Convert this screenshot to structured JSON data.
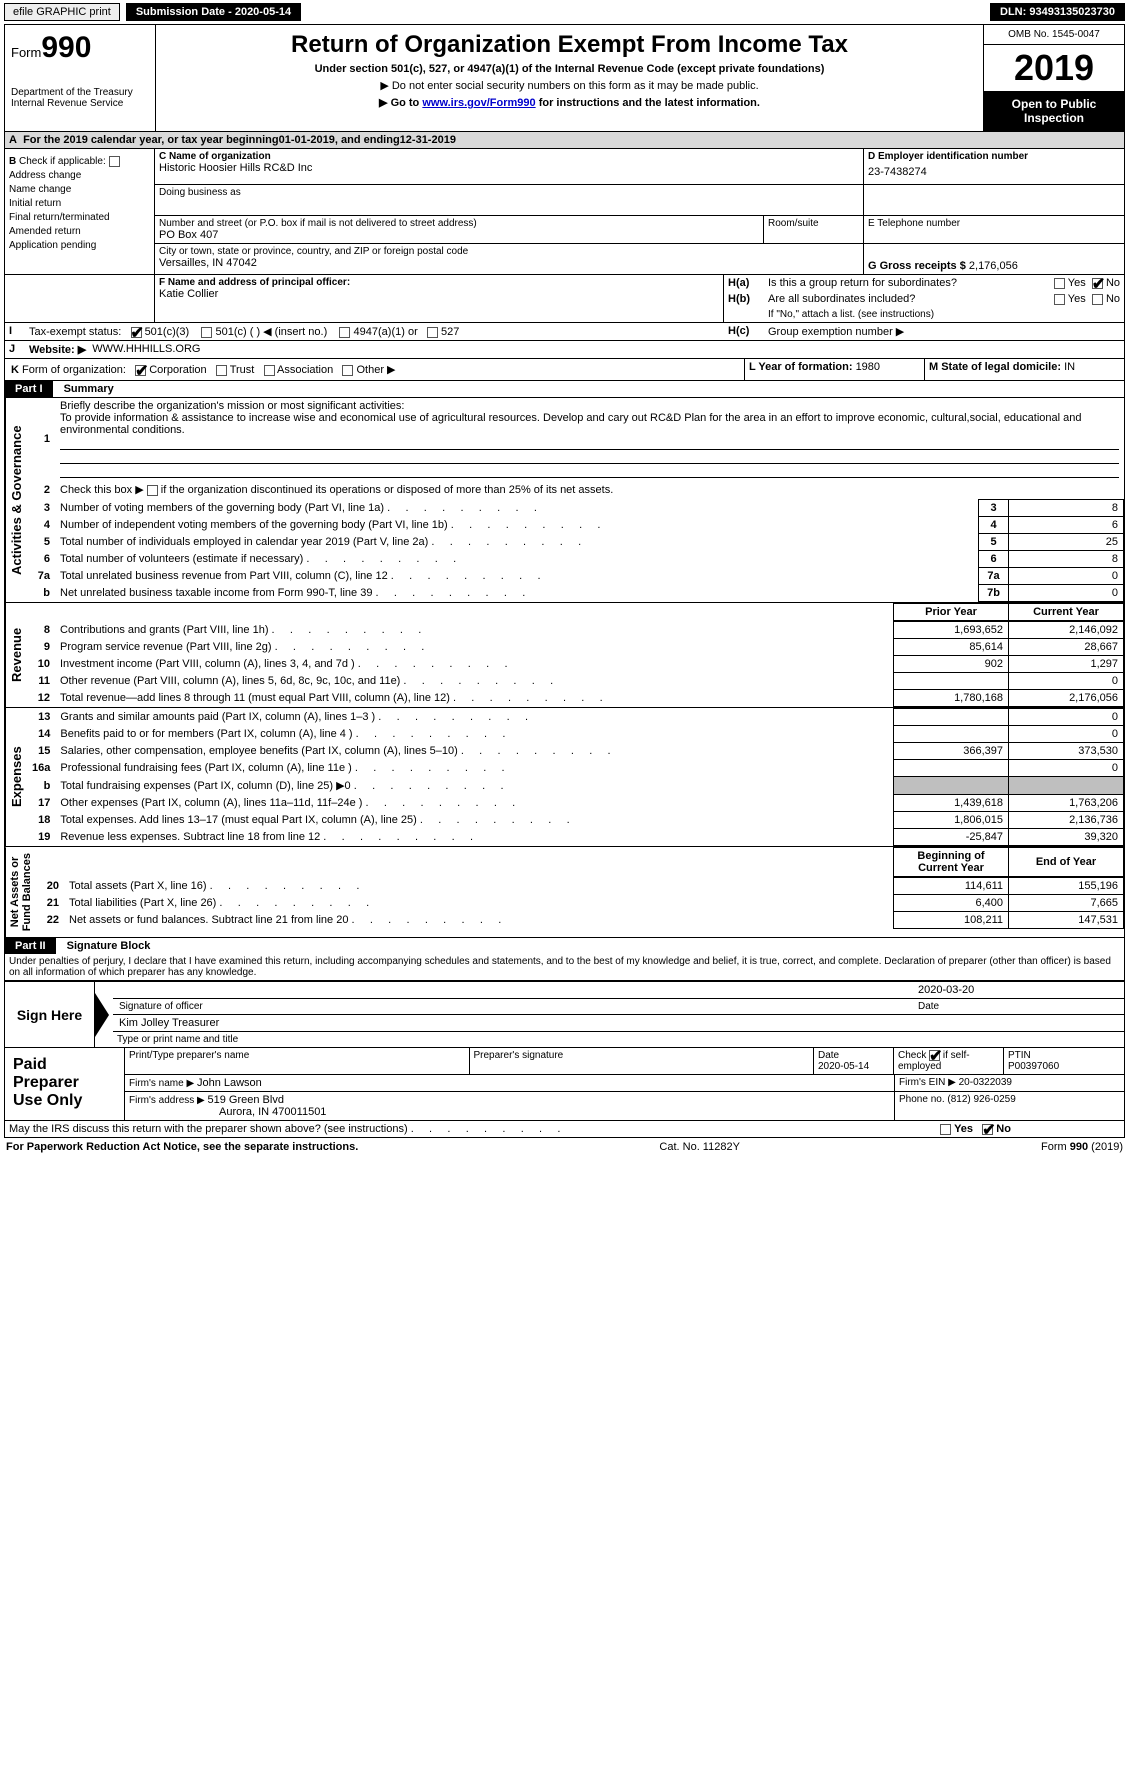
{
  "topbar": {
    "efile": "efile GRAPHIC print",
    "submission_label": "Submission Date - 2020-05-14",
    "dln_label": "DLN: 93493135023730"
  },
  "header": {
    "form_prefix": "Form",
    "form_no": "990",
    "title": "Return of Organization Exempt From Income Tax",
    "subtitle": "Under section 501(c), 527, or 4947(a)(1) of the Internal Revenue Code (except private foundations)",
    "note1": "▶ Do not enter social security numbers on this form as it may be made public.",
    "note2_pre": "▶ Go to ",
    "note2_link": "www.irs.gov/Form990",
    "note2_post": " for instructions and the latest information.",
    "dept": "Department of the Treasury\nInternal Revenue Service",
    "omb": "OMB No. 1545-0047",
    "year": "2019",
    "open": "Open to Public\nInspection"
  },
  "A": {
    "cal_year_label": "For the 2019 calendar year, or tax year beginning ",
    "begin": "01-01-2019",
    "mid": " , and ending ",
    "end": "12-31-2019"
  },
  "B": {
    "label": "Check if applicable:",
    "addr_change": "Address change",
    "name_change": "Name change",
    "initial": "Initial return",
    "final": "Final return/terminated",
    "amended": "Amended return",
    "app_pending": "Application pending"
  },
  "C": {
    "label": "C Name of organization",
    "name": "Historic Hoosier Hills RC&D Inc",
    "dba_label": "Doing business as",
    "street_label": "Number and street (or P.O. box if mail is not delivered to street address)",
    "street": "PO Box 407",
    "room_label": "Room/suite",
    "city_label": "City or town, state or province, country, and ZIP or foreign postal code",
    "city": "Versailles, IN  47042"
  },
  "D": {
    "label": "D Employer identification number",
    "ein": "23-7438274"
  },
  "E": {
    "label": "E Telephone number"
  },
  "F": {
    "label": "F  Name and address of principal officer:",
    "name": "Katie Collier"
  },
  "G": {
    "label": "G Gross receipts $ ",
    "val": "2,176,056"
  },
  "H": {
    "a_label": "Is this a group return for subordinates?",
    "b_label": "Are all subordinates included?",
    "b_note": "If \"No,\" attach a list. (see instructions)",
    "c_label": "Group exemption number ▶",
    "yes": "Yes",
    "no": "No",
    "ha": "H(a)",
    "hb": "H(b)",
    "hc": "H(c)"
  },
  "I": {
    "label": "Tax-exempt status:",
    "o501c3": "501(c)(3)",
    "o501c": "501(c) (  ) ◀ (insert no.)",
    "o4947": "4947(a)(1) or",
    "o527": "527"
  },
  "J": {
    "label": "Website: ▶",
    "val": "WWW.HHHILLS.ORG"
  },
  "K": {
    "label": "Form of organization:",
    "corp": "Corporation",
    "trust": "Trust",
    "assoc": "Association",
    "other": "Other ▶"
  },
  "L": {
    "label": "L Year of formation: ",
    "val": "1980"
  },
  "M": {
    "label": "M State of legal domicile: ",
    "val": "IN"
  },
  "parts": {
    "p1": "Part I",
    "p1t": "Summary",
    "p2": "Part II",
    "p2t": "Signature Block"
  },
  "summary": {
    "q1_label": "Briefly describe the organization's mission or most significant activities:",
    "q1_text": "To provide information & assistance to increase wise and economical use of agricultural resources. Develop and cary out RC&D Plan for the area in an effort to improve economic, cultural,social, educational and environmental conditions.",
    "q2": "Check this box ▶        if the organization discontinued its operations or disposed of more than 25% of its net assets.",
    "prior": "Prior Year",
    "current": "Current Year",
    "begcur": "Beginning of Current Year",
    "eoy": "End of Year"
  },
  "lines_ag": [
    {
      "n": "3",
      "d": "Number of voting members of the governing body (Part VI, line 1a)",
      "box": "3",
      "v": "8"
    },
    {
      "n": "4",
      "d": "Number of independent voting members of the governing body (Part VI, line 1b)",
      "box": "4",
      "v": "6"
    },
    {
      "n": "5",
      "d": "Total number of individuals employed in calendar year 2019 (Part V, line 2a)",
      "box": "5",
      "v": "25"
    },
    {
      "n": "6",
      "d": "Total number of volunteers (estimate if necessary)",
      "box": "6",
      "v": "8"
    },
    {
      "n": "7a",
      "d": "Total unrelated business revenue from Part VIII, column (C), line 12",
      "box": "7a",
      "v": "0"
    },
    {
      "n": "b",
      "d": "Net unrelated business taxable income from Form 990-T, line 39",
      "box": "7b",
      "v": "0"
    }
  ],
  "lines_rev": [
    {
      "n": "8",
      "d": "Contributions and grants (Part VIII, line 1h)",
      "p": "1,693,652",
      "c": "2,146,092"
    },
    {
      "n": "9",
      "d": "Program service revenue (Part VIII, line 2g)",
      "p": "85,614",
      "c": "28,667"
    },
    {
      "n": "10",
      "d": "Investment income (Part VIII, column (A), lines 3, 4, and 7d )",
      "p": "902",
      "c": "1,297"
    },
    {
      "n": "11",
      "d": "Other revenue (Part VIII, column (A), lines 5, 6d, 8c, 9c, 10c, and 11e)",
      "p": "",
      "c": "0"
    },
    {
      "n": "12",
      "d": "Total revenue—add lines 8 through 11 (must equal Part VIII, column (A), line 12)",
      "p": "1,780,168",
      "c": "2,176,056"
    }
  ],
  "lines_exp": [
    {
      "n": "13",
      "d": "Grants and similar amounts paid (Part IX, column (A), lines 1–3 )",
      "p": "",
      "c": "0"
    },
    {
      "n": "14",
      "d": "Benefits paid to or for members (Part IX, column (A), line 4 )",
      "p": "",
      "c": "0"
    },
    {
      "n": "15",
      "d": "Salaries, other compensation, employee benefits (Part IX, column (A), lines 5–10)",
      "p": "366,397",
      "c": "373,530"
    },
    {
      "n": "16a",
      "d": "Professional fundraising fees (Part IX, column (A), line 11e )",
      "p": "",
      "c": "0"
    },
    {
      "n": "b",
      "d": "Total fundraising expenses (Part IX, column (D), line 25) ▶0",
      "p": "SHADE",
      "c": "SHADE"
    },
    {
      "n": "17",
      "d": "Other expenses (Part IX, column (A), lines 11a–11d, 11f–24e )",
      "p": "1,439,618",
      "c": "1,763,206"
    },
    {
      "n": "18",
      "d": "Total expenses. Add lines 13–17 (must equal Part IX, column (A), line 25)",
      "p": "1,806,015",
      "c": "2,136,736"
    },
    {
      "n": "19",
      "d": "Revenue less expenses. Subtract line 18 from line 12",
      "p": "-25,847",
      "c": "39,320"
    }
  ],
  "lines_na": [
    {
      "n": "20",
      "d": "Total assets (Part X, line 16)",
      "p": "114,611",
      "c": "155,196"
    },
    {
      "n": "21",
      "d": "Total liabilities (Part X, line 26)",
      "p": "6,400",
      "c": "7,665"
    },
    {
      "n": "22",
      "d": "Net assets or fund balances. Subtract line 21 from line 20",
      "p": "108,211",
      "c": "147,531"
    }
  ],
  "vlabels": {
    "ag": "Activities & Governance",
    "rev": "Revenue",
    "exp": "Expenses",
    "na": "Net Assets or\nFund Balances"
  },
  "sig": {
    "penalty": "Under penalties of perjury, I declare that I have examined this return, including accompanying schedules and statements, and to the best of my knowledge and belief, it is true, correct, and complete. Declaration of preparer (other than officer) is based on all information of which preparer has any knowledge.",
    "sign_here": "Sign Here",
    "sig_officer": "Signature of officer",
    "date": "Date",
    "sig_date": "2020-03-20",
    "name_title": "Kim Jolley Treasurer",
    "name_title_label": "Type or print name and title"
  },
  "prep": {
    "title": "Paid\nPreparer\nUse Only",
    "h_name": "Print/Type preparer's name",
    "h_sig": "Preparer's signature",
    "h_date": "Date",
    "date": "2020-05-14",
    "check_label": "Check          if self-employed",
    "ptin_label": "PTIN",
    "ptin": "P00397060",
    "firm_name_label": "Firm's name    ▶ ",
    "firm_name": "John Lawson",
    "firm_ein_label": "Firm's EIN ▶ ",
    "firm_ein": "20-0322039",
    "firm_addr_label": "Firm's address ▶ ",
    "firm_addr1": "519 Green Blvd",
    "firm_addr2": "Aurora, IN  470011501",
    "phone_label": "Phone no. ",
    "phone": "(812) 926-0259"
  },
  "bottom": {
    "discuss": "May the IRS discuss this return with the preparer shown above? (see instructions)",
    "pra": "For Paperwork Reduction Act Notice, see the separate instructions.",
    "cat": "Cat. No. 11282Y",
    "form": "Form 990 (2019)"
  }
}
